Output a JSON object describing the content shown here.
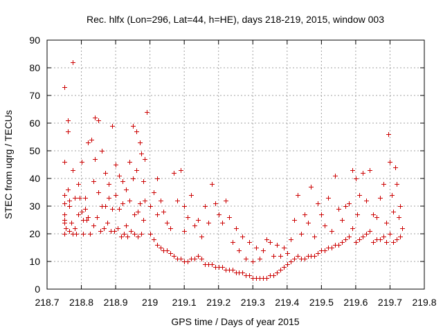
{
  "chart_data": {
    "type": "scatter",
    "title": "Rec. hlfx (Lon=296, Lat=44, h=HE), days 218-219, 2015, window 003",
    "xlabel": "GPS time / Days of year 2015",
    "ylabel": "STEC from uqrg / TECUs",
    "xlim": [
      218.7,
      219.8
    ],
    "ylim": [
      0,
      90
    ],
    "xticks": [
      "218.7",
      "218.8",
      "218.9",
      "219",
      "219.1",
      "219.2",
      "219.3",
      "219.4",
      "219.5",
      "219.6",
      "219.7",
      "219.8"
    ],
    "xtick_values": [
      218.7,
      218.8,
      218.9,
      219.0,
      219.1,
      219.2,
      219.3,
      219.4,
      219.5,
      219.6,
      219.7,
      219.8
    ],
    "yticks": [
      "0",
      "10",
      "20",
      "30",
      "40",
      "50",
      "60",
      "70",
      "80",
      "90"
    ],
    "ytick_values": [
      0,
      10,
      20,
      30,
      40,
      50,
      60,
      70,
      80,
      90
    ],
    "grid": true,
    "marker": "plus",
    "color": "#cc0000",
    "series": [
      {
        "x": [
          218.75,
          218.75,
          218.75,
          218.75,
          218.75,
          218.75,
          218.75,
          218.75,
          218.755,
          218.76,
          218.76,
          218.76,
          218.765,
          218.765,
          218.765,
          218.77,
          218.775,
          218.775,
          218.775,
          218.78,
          218.78,
          218.785,
          218.79,
          218.79,
          218.795,
          218.8,
          218.8,
          218.805,
          218.805,
          218.81,
          218.81,
          218.815,
          218.82,
          218.82,
          218.825,
          218.83,
          218.835,
          218.835,
          218.84,
          218.84,
          218.845,
          218.85,
          218.85,
          218.855,
          218.86,
          218.86,
          218.865,
          218.87,
          218.87,
          218.875,
          218.88,
          218.88,
          218.885,
          218.89,
          218.89,
          218.895,
          218.9,
          218.9,
          218.905,
          218.91,
          218.91,
          218.915,
          218.92,
          218.92,
          218.925,
          218.93,
          218.93,
          218.935,
          218.94,
          218.94,
          218.945,
          218.95,
          218.95,
          218.955,
          218.955,
          218.96,
          218.96,
          218.965,
          218.965,
          218.97,
          218.97,
          218.975,
          218.975,
          218.98,
          218.98,
          218.985,
          218.985,
          218.99
        ],
        "y": [
          73,
          46,
          34,
          31,
          27,
          25,
          24,
          20,
          22,
          61,
          57,
          36,
          32,
          30,
          21,
          24,
          82,
          43,
          20,
          33,
          22,
          20,
          38,
          27,
          33,
          46,
          28,
          25,
          20,
          33,
          29,
          25,
          53,
          26,
          20,
          54,
          39,
          23,
          62,
          47,
          26,
          61,
          35,
          21,
          50,
          30,
          22,
          42,
          30,
          24,
          38,
          33,
          21,
          59,
          29,
          21,
          45,
          34,
          22,
          41,
          29,
          19,
          39,
          31,
          20,
          36,
          23,
          19,
          46,
          32,
          21,
          59,
          40,
          27,
          20,
          57,
          43,
          28,
          19,
          53,
          31,
          20,
          49,
          39,
          25,
          47,
          32,
          64
        ],
        "name": ""
      },
      {
        "x": [
          219.0,
          219.0,
          219.01,
          219.01,
          219.02,
          219.02,
          219.02,
          219.03,
          219.03,
          219.04,
          219.04,
          219.05,
          219.05,
          219.06,
          219.06,
          219.07,
          219.07,
          219.08,
          219.08,
          219.09,
          219.09,
          219.1,
          219.1,
          219.1,
          219.11,
          219.11,
          219.12,
          219.12,
          219.13,
          219.13,
          219.14,
          219.14,
          219.15,
          219.15,
          219.16,
          219.16,
          219.17,
          219.17,
          219.18,
          219.18,
          219.19,
          219.19,
          219.2,
          219.2,
          219.21,
          219.21,
          219.22,
          219.22,
          219.23,
          219.23,
          219.24,
          219.24,
          219.25,
          219.25,
          219.26,
          219.26,
          219.27,
          219.27,
          219.28,
          219.28,
          219.29,
          219.29,
          219.3,
          219.3,
          219.31,
          219.31,
          219.32,
          219.32,
          219.33,
          219.33,
          219.34,
          219.34,
          219.35,
          219.35,
          219.36,
          219.36,
          219.37,
          219.37,
          219.38,
          219.38,
          219.39,
          219.39,
          219.4,
          219.4
        ],
        "y": [
          30,
          20,
          35,
          18,
          40,
          27,
          16,
          32,
          15,
          28,
          14,
          24,
          14,
          22,
          13,
          42,
          12,
          32,
          11,
          43,
          11,
          30,
          21,
          10,
          26,
          10,
          34,
          11,
          23,
          11,
          25,
          12,
          19,
          11,
          30,
          9,
          24,
          9,
          38,
          9,
          31,
          8,
          27,
          8,
          24,
          8,
          32,
          7,
          26,
          7,
          17,
          7,
          22,
          6,
          14,
          6,
          19,
          6,
          11,
          5,
          17,
          5,
          10,
          4,
          15,
          4,
          11,
          4,
          14,
          4,
          18,
          4,
          17,
          5,
          12,
          5,
          16,
          6,
          12,
          7,
          15,
          8,
          13,
          9
        ],
        "name": ""
      },
      {
        "x": [
          219.41,
          219.41,
          219.42,
          219.42,
          219.43,
          219.43,
          219.44,
          219.44,
          219.45,
          219.45,
          219.46,
          219.46,
          219.47,
          219.47,
          219.48,
          219.48,
          219.49,
          219.49,
          219.5,
          219.5,
          219.51,
          219.51,
          219.52,
          219.52,
          219.53,
          219.53,
          219.54,
          219.54,
          219.55,
          219.55,
          219.56,
          219.56,
          219.57,
          219.57,
          219.58,
          219.58,
          219.59,
          219.59,
          219.6,
          219.6,
          219.605,
          219.61,
          219.61,
          219.62,
          219.62,
          219.63,
          219.63,
          219.64,
          219.64,
          219.65,
          219.65,
          219.66,
          219.66,
          219.67,
          219.67,
          219.68,
          219.68,
          219.69,
          219.69,
          219.695,
          219.7,
          219.7,
          219.705,
          219.71,
          219.71,
          219.715,
          219.72,
          219.72,
          219.725,
          219.73,
          219.73,
          219.735
        ],
        "y": [
          18,
          10,
          25,
          11,
          34,
          12,
          20,
          11,
          27,
          11,
          24,
          12,
          37,
          12,
          19,
          12,
          31,
          13,
          27,
          14,
          23,
          14,
          33,
          15,
          21,
          15,
          41,
          16,
          29,
          16,
          25,
          17,
          30,
          18,
          31,
          19,
          43,
          22,
          40,
          17,
          27,
          34,
          18,
          42,
          19,
          32,
          20,
          43,
          21,
          27,
          17,
          26,
          18,
          33,
          18,
          38,
          19,
          24,
          17,
          56,
          46,
          20,
          34,
          28,
          17,
          44,
          38,
          18,
          26,
          30,
          19,
          22
        ]
      }
    ]
  }
}
